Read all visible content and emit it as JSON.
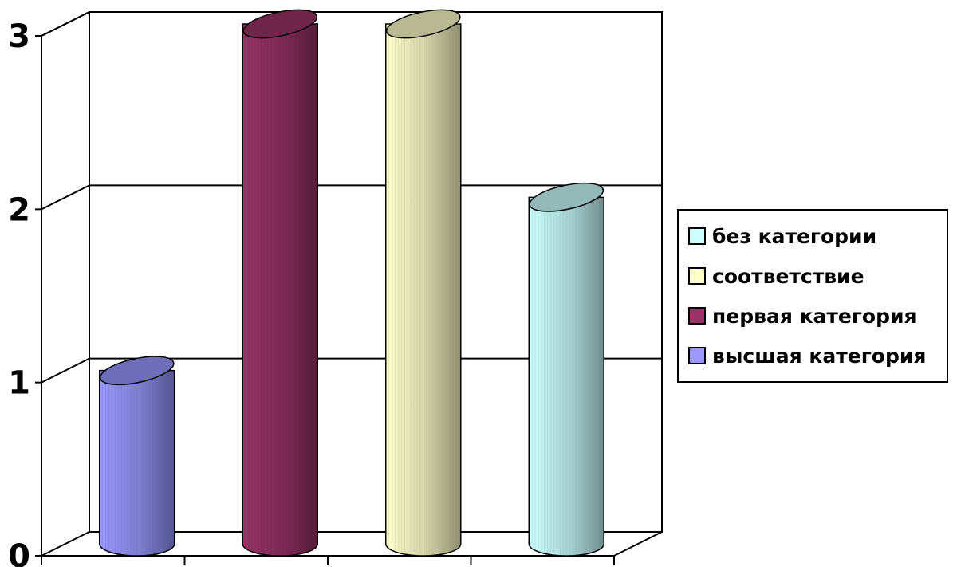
{
  "chart_data": {
    "type": "bar",
    "style": "3d-cylinder",
    "categories": [
      "",
      "",
      "",
      ""
    ],
    "series": [
      {
        "name": "высшая категория",
        "values": [
          1,
          null,
          null,
          null
        ],
        "color": "#9999ff"
      },
      {
        "name": "первая категория",
        "values": [
          null,
          3,
          null,
          null
        ],
        "color": "#993366"
      },
      {
        "name": "соответствие",
        "values": [
          null,
          null,
          3,
          null
        ],
        "color": "#ffffcc"
      },
      {
        "name": "без категории",
        "values": [
          null,
          null,
          null,
          2
        ],
        "color": "#ccffff"
      }
    ],
    "y_ticks": [
      "0",
      "1",
      "2",
      "3"
    ],
    "ylim": [
      0,
      3
    ],
    "grid": true,
    "legend_position": "right",
    "legend_order": [
      "без категории",
      "соответствие",
      "первая категория",
      "высшая категория"
    ]
  }
}
